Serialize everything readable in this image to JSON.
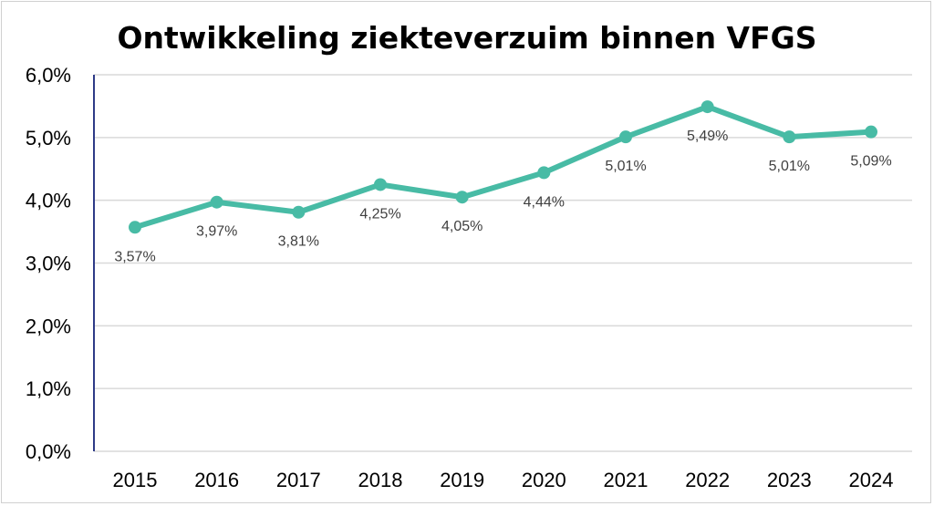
{
  "chart_data": {
    "type": "line",
    "title": "Ontwikkeling ziekteverzuim binnen VFGS",
    "xlabel": "",
    "ylabel": "",
    "categories": [
      "2015",
      "2016",
      "2017",
      "2018",
      "2019",
      "2020",
      "2021",
      "2022",
      "2023",
      "2024"
    ],
    "values": [
      3.57,
      3.97,
      3.81,
      4.25,
      4.05,
      4.44,
      5.01,
      5.49,
      5.01,
      5.09
    ],
    "data_labels": [
      "3,57%",
      "3,97%",
      "3,81%",
      "4,25%",
      "4,05%",
      "4,44%",
      "5,01%",
      "5,49%",
      "5,01%",
      "5,09%"
    ],
    "ylim": [
      0,
      6
    ],
    "yticks": [
      "0,0%",
      "1,0%",
      "2,0%",
      "3,0%",
      "4,0%",
      "5,0%",
      "6,0%"
    ],
    "grid": true,
    "legend": "none",
    "colors": {
      "line": "#48bba5",
      "axis": "#2e3a87",
      "grid": "#d9d9d9"
    }
  }
}
